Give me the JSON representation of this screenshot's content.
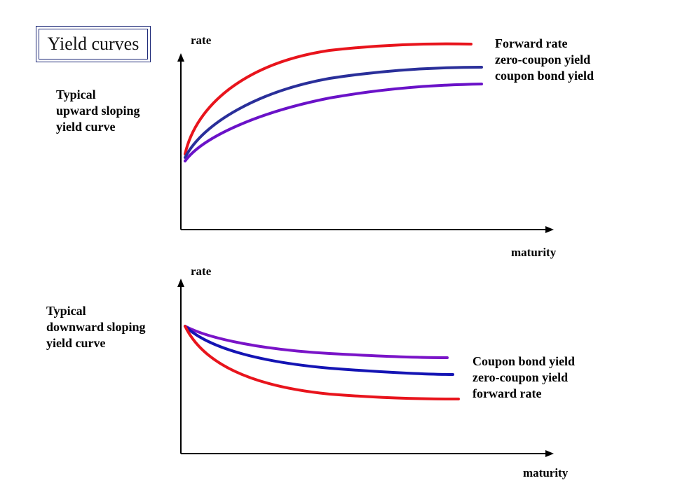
{
  "title": "Yield curves",
  "panels": [
    {
      "id": "upward",
      "description_lines": [
        "Typical",
        "upward sloping",
        "yield curve"
      ],
      "y_axis_label": "rate",
      "x_axis_label": "maturity",
      "legend": [
        "Forward rate",
        "zero-coupon yield",
        "coupon bond yield"
      ],
      "curves": [
        {
          "color": "#e8141c",
          "shape": "concave-rising",
          "level": "highest"
        },
        {
          "color": "#2a2f9a",
          "shape": "concave-rising",
          "level": "middle"
        },
        {
          "color": "#6a12c8",
          "shape": "concave-rising",
          "level": "lowest"
        }
      ]
    },
    {
      "id": "downward",
      "description_lines": [
        "Typical",
        "downward sloping",
        "yield curve"
      ],
      "y_axis_label": "rate",
      "x_axis_label": "maturity",
      "legend": [
        "Coupon bond yield",
        "zero-coupon yield",
        "forward rate"
      ],
      "curves": [
        {
          "color": "#7a14c8",
          "shape": "convex-falling",
          "level": "highest"
        },
        {
          "color": "#1414b4",
          "shape": "convex-falling",
          "level": "middle"
        },
        {
          "color": "#e8141c",
          "shape": "convex-falling",
          "level": "lowest"
        }
      ]
    }
  ]
}
